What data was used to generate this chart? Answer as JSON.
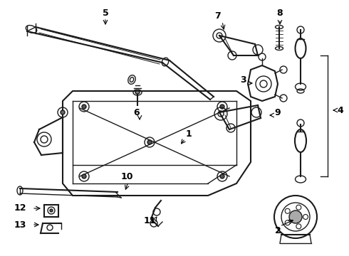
{
  "bg_color": "#ffffff",
  "line_color": "#1a1a1a",
  "figsize": [
    4.9,
    3.6
  ],
  "dpi": 100,
  "label_data": [
    [
      "5",
      148,
      18,
      9
    ],
    [
      "6",
      192,
      158,
      9
    ],
    [
      "1",
      265,
      188,
      9
    ],
    [
      "7",
      305,
      22,
      9
    ],
    [
      "8",
      393,
      18,
      9
    ],
    [
      "3",
      342,
      112,
      9
    ],
    [
      "9",
      390,
      158,
      9
    ],
    [
      "4",
      478,
      155,
      9
    ],
    [
      "2",
      390,
      325,
      9
    ],
    [
      "10",
      178,
      248,
      9
    ],
    [
      "11",
      210,
      310,
      9
    ],
    [
      "12",
      28,
      293,
      9
    ],
    [
      "13",
      28,
      316,
      9
    ]
  ],
  "arrow_data": [
    [
      "5",
      148,
      25,
      148,
      38
    ],
    [
      "6",
      196,
      163,
      196,
      172
    ],
    [
      "1",
      260,
      195,
      252,
      205
    ],
    [
      "7",
      312,
      30,
      315,
      45
    ],
    [
      "8",
      393,
      27,
      393,
      38
    ],
    [
      "3",
      348,
      117,
      358,
      117
    ],
    [
      "9",
      384,
      162,
      375,
      162
    ],
    [
      "4",
      472,
      155,
      467,
      155
    ],
    [
      "2",
      393,
      318,
      415,
      308
    ],
    [
      "10",
      180,
      256,
      175,
      270
    ],
    [
      "11",
      218,
      308,
      222,
      302
    ],
    [
      "12",
      45,
      293,
      60,
      293
    ],
    [
      "13",
      45,
      316,
      58,
      316
    ]
  ]
}
